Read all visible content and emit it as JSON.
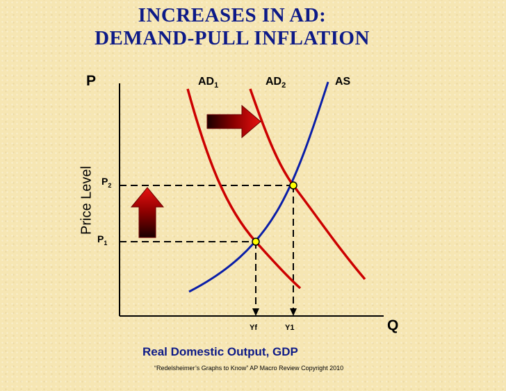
{
  "title_line1": "INCREASES IN AD:",
  "title_line2": "DEMAND-PULL INFLATION",
  "axis": {
    "y_letter": "P",
    "x_letter": "Q",
    "y_title": "Price Level",
    "x_title": "Real Domestic Output, GDP"
  },
  "curves": {
    "ad1": {
      "base": "AD",
      "sub": "1",
      "color": "#cc0000"
    },
    "ad2": {
      "base": "AD",
      "sub": "2",
      "color": "#cc0000"
    },
    "as": {
      "label": "AS",
      "color": "#0a1ea8"
    }
  },
  "price_levels": {
    "p1": {
      "base": "P",
      "sub": "1"
    },
    "p2": {
      "base": "P",
      "sub": "2"
    }
  },
  "outputs": {
    "yf": "Yf",
    "y1": "Y1"
  },
  "equilibrium_color": "#ffff00",
  "credit": "“Redelsheimer’s Graphs to Know”  AP Macro Review Copyright 2010"
}
